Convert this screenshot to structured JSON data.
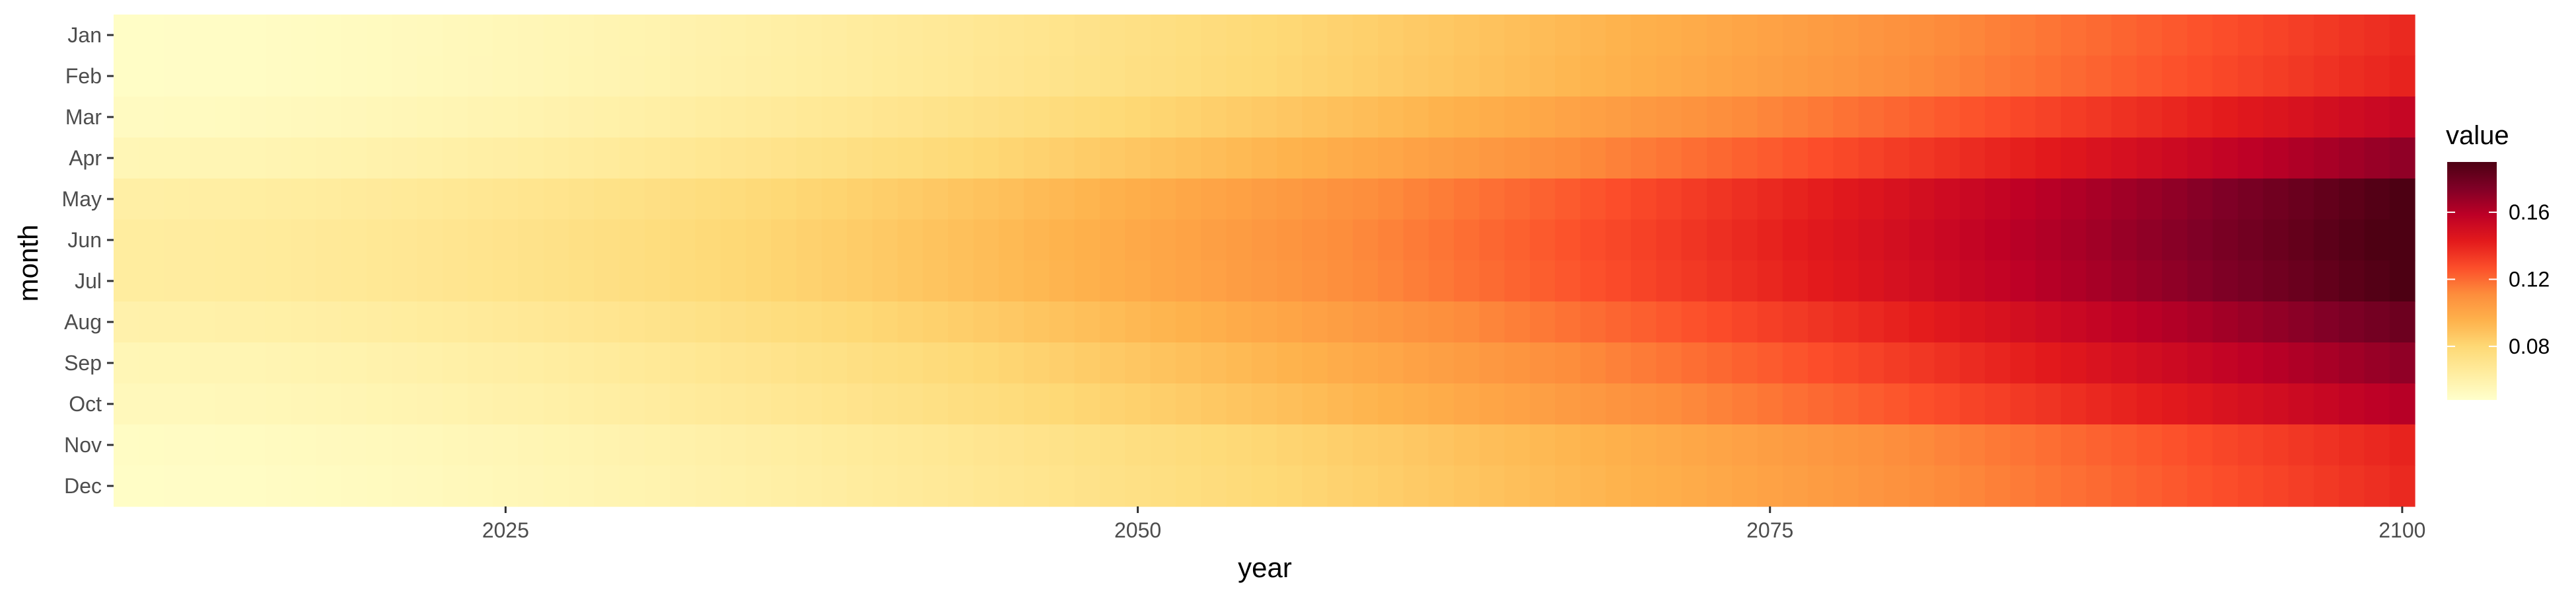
{
  "chart_data": {
    "type": "heatmap",
    "title": "",
    "xlabel": "year",
    "ylabel": "month",
    "x_start": 2010,
    "x_end": 2100,
    "xlim": [
      2009.5,
      2100.5
    ],
    "x_ticks": [
      2025,
      2050,
      2075,
      2100
    ],
    "months": [
      "Jan",
      "Feb",
      "Mar",
      "Apr",
      "May",
      "Jun",
      "Jul",
      "Aug",
      "Sep",
      "Oct",
      "Nov",
      "Dec"
    ],
    "start_values": [
      0.05,
      0.05,
      0.052,
      0.056,
      0.062,
      0.064,
      0.064,
      0.06,
      0.056,
      0.054,
      0.051,
      0.05
    ],
    "end_values": [
      0.138,
      0.14,
      0.155,
      0.17,
      0.19,
      0.192,
      0.19,
      0.18,
      0.17,
      0.16,
      0.14,
      0.138
    ],
    "growth_exponent": 1.6,
    "color_scale": {
      "name": "value",
      "min": 0.048,
      "max": 0.19,
      "stops": [
        "#ffffcc",
        "#ffeda0",
        "#fed976",
        "#feb24c",
        "#fd8d3c",
        "#fc4e2a",
        "#e31a1c",
        "#bd0026",
        "#800026",
        "#4d0013"
      ],
      "breaks": [
        0.08,
        0.12,
        0.16
      ]
    },
    "legend": {
      "title": "value",
      "position": "right"
    },
    "grid": true
  }
}
